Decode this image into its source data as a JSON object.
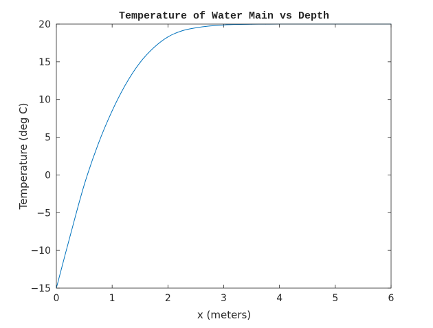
{
  "chart_data": {
    "type": "line",
    "title": "Temperature of Water Main vs Depth",
    "xlabel": "x (meters)",
    "ylabel": "Temperature (deg C)",
    "xlim": [
      0,
      6
    ],
    "ylim": [
      -15,
      20
    ],
    "xticks": [
      0,
      1,
      2,
      3,
      4,
      5,
      6
    ],
    "yticks": [
      -15,
      -10,
      -5,
      0,
      5,
      10,
      15,
      20
    ],
    "xtick_labels": [
      "0",
      "1",
      "2",
      "3",
      "4",
      "5",
      "6"
    ],
    "ytick_labels": [
      "−15",
      "−10",
      "−5",
      "0",
      "5",
      "10",
      "15",
      "20"
    ],
    "grid": false,
    "legend": "none",
    "series": [
      {
        "color": "#0072BD",
        "x": [
          0,
          0.25,
          0.5,
          0.75,
          1.0,
          1.25,
          1.5,
          1.75,
          2.0,
          2.25,
          2.5,
          2.75,
          3.0,
          3.25,
          3.5,
          3.75,
          4.0,
          4.5,
          5.0,
          5.5,
          6.0
        ],
        "y": [
          -15.0,
          -8.0,
          -1.3,
          4.1,
          8.5,
          12.1,
          14.9,
          16.9,
          18.3,
          19.1,
          19.5,
          19.75,
          19.88,
          19.95,
          19.98,
          19.99,
          20.0,
          20.0,
          20.0,
          20.0,
          20.0
        ]
      }
    ]
  }
}
